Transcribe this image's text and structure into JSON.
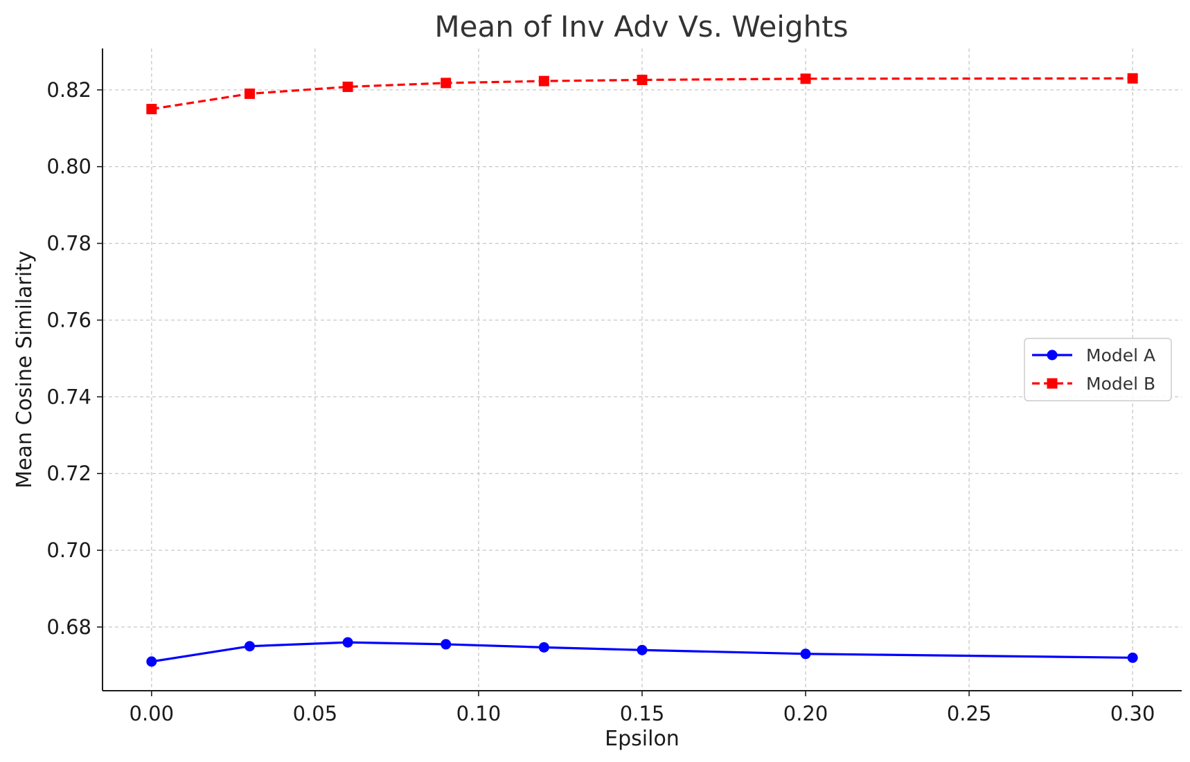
{
  "chart_data": {
    "type": "line",
    "title": "Mean of Inv Adv Vs. Weights",
    "xlabel": "Epsilon",
    "ylabel": "Mean Cosine Similarity",
    "x": [
      0.0,
      0.03,
      0.06,
      0.09,
      0.12,
      0.15,
      0.2,
      0.3
    ],
    "xlim": [
      -0.015,
      0.315
    ],
    "ylim": [
      0.6634,
      0.8308
    ],
    "xticks": [
      0.0,
      0.05,
      0.1,
      0.15,
      0.2,
      0.25,
      0.3
    ],
    "xtick_labels": [
      "0.00",
      "0.05",
      "0.10",
      "0.15",
      "0.20",
      "0.25",
      "0.30"
    ],
    "yticks": [
      0.68,
      0.7,
      0.72,
      0.74,
      0.76,
      0.78,
      0.8,
      0.82
    ],
    "ytick_labels": [
      "0.68",
      "0.70",
      "0.72",
      "0.74",
      "0.76",
      "0.78",
      "0.80",
      "0.82"
    ],
    "grid": true,
    "legend_position": "center-right",
    "series": [
      {
        "name": "Model A",
        "values": [
          0.671,
          0.675,
          0.676,
          0.6755,
          0.6747,
          0.674,
          0.673,
          0.672
        ],
        "color": "#0000ff",
        "marker": "circle",
        "line_style": "solid"
      },
      {
        "name": "Model B",
        "values": [
          0.815,
          0.819,
          0.8208,
          0.8218,
          0.8223,
          0.8226,
          0.8229,
          0.823
        ],
        "color": "#ff0000",
        "marker": "square",
        "line_style": "dashed"
      }
    ]
  }
}
